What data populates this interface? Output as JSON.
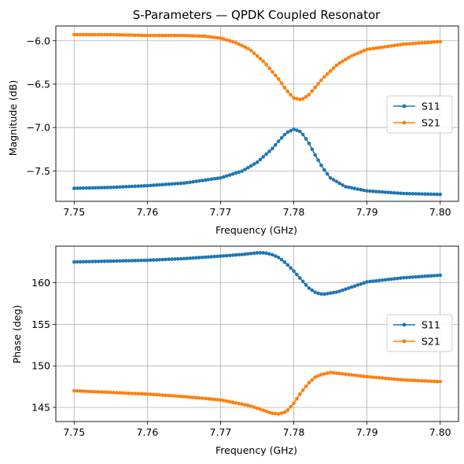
{
  "chart_data": [
    {
      "type": "line",
      "title": "S-Parameters — QPDK Coupled Resonator",
      "xlabel": "Frequency (GHz)",
      "ylabel": "Magnitude (dB)",
      "xlim": [
        7.7475,
        7.8025
      ],
      "ylim": [
        -7.85,
        -5.83
      ],
      "xticks": [
        7.75,
        7.76,
        7.77,
        7.78,
        7.79,
        7.8
      ],
      "xtick_labels": [
        "7.75",
        "7.76",
        "7.77",
        "7.78",
        "7.79",
        "7.80"
      ],
      "yticks": [
        -7.5,
        -7.0,
        -6.5,
        -6.0
      ],
      "ytick_labels": [
        "−7.5",
        "−7.0",
        "−6.5",
        "−6.0"
      ],
      "grid": true,
      "legend_position": "center-right",
      "series": [
        {
          "name": "S11",
          "color": "#1f77b4",
          "x": [
            7.75,
            7.755,
            7.76,
            7.765,
            7.77,
            7.773,
            7.775,
            7.777,
            7.778,
            7.779,
            7.78,
            7.781,
            7.782,
            7.783,
            7.784,
            7.785,
            7.787,
            7.79,
            7.795,
            7.8
          ],
          "values": [
            -7.7,
            -7.69,
            -7.67,
            -7.64,
            -7.58,
            -7.5,
            -7.4,
            -7.25,
            -7.15,
            -7.06,
            -7.02,
            -7.05,
            -7.17,
            -7.33,
            -7.47,
            -7.58,
            -7.68,
            -7.73,
            -7.76,
            -7.77
          ]
        },
        {
          "name": "S21",
          "color": "#ff7f0e",
          "x": [
            7.75,
            7.755,
            7.76,
            7.765,
            7.768,
            7.77,
            7.772,
            7.774,
            7.776,
            7.778,
            7.779,
            7.78,
            7.781,
            7.782,
            7.783,
            7.784,
            7.786,
            7.788,
            7.79,
            7.795,
            7.8
          ],
          "values": [
            -5.93,
            -5.93,
            -5.94,
            -5.94,
            -5.95,
            -5.97,
            -6.02,
            -6.1,
            -6.25,
            -6.45,
            -6.57,
            -6.66,
            -6.68,
            -6.63,
            -6.53,
            -6.43,
            -6.27,
            -6.17,
            -6.1,
            -6.04,
            -6.01
          ]
        }
      ]
    },
    {
      "type": "line",
      "title": "",
      "xlabel": "Frequency (GHz)",
      "ylabel": "Phase (deg)",
      "xlim": [
        7.7475,
        7.8025
      ],
      "ylim": [
        143.3,
        164.4
      ],
      "xticks": [
        7.75,
        7.76,
        7.77,
        7.78,
        7.79,
        7.8
      ],
      "xtick_labels": [
        "7.75",
        "7.76",
        "7.77",
        "7.78",
        "7.79",
        "7.80"
      ],
      "yticks": [
        145,
        150,
        155,
        160
      ],
      "ytick_labels": [
        "145",
        "150",
        "155",
        "160"
      ],
      "grid": true,
      "legend_position": "center-right",
      "series": [
        {
          "name": "S11",
          "color": "#1f77b4",
          "x": [
            7.75,
            7.755,
            7.76,
            7.765,
            7.77,
            7.773,
            7.775,
            7.776,
            7.777,
            7.778,
            7.779,
            7.78,
            7.781,
            7.782,
            7.783,
            7.784,
            7.786,
            7.788,
            7.79,
            7.795,
            7.8
          ],
          "values": [
            162.5,
            162.6,
            162.7,
            162.9,
            163.2,
            163.4,
            163.6,
            163.6,
            163.4,
            163.0,
            162.3,
            161.4,
            160.4,
            159.4,
            158.8,
            158.6,
            158.9,
            159.5,
            160.1,
            160.6,
            160.9
          ]
        },
        {
          "name": "S21",
          "color": "#ff7f0e",
          "x": [
            7.75,
            7.755,
            7.76,
            7.765,
            7.77,
            7.774,
            7.776,
            7.777,
            7.778,
            7.779,
            7.78,
            7.781,
            7.782,
            7.783,
            7.784,
            7.785,
            7.787,
            7.79,
            7.795,
            7.8
          ],
          "values": [
            147.0,
            146.8,
            146.6,
            146.3,
            145.9,
            145.2,
            144.6,
            144.3,
            144.2,
            144.5,
            145.5,
            146.8,
            147.9,
            148.7,
            149.0,
            149.2,
            149.0,
            148.7,
            148.3,
            148.1
          ]
        }
      ]
    }
  ]
}
